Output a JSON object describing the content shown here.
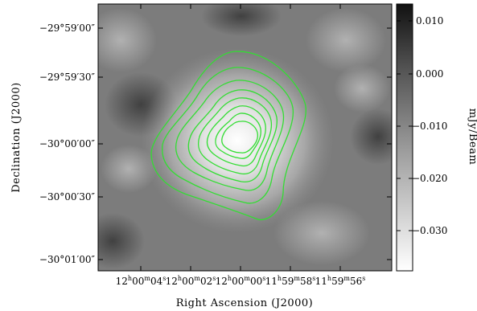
{
  "figure": {
    "xlabel": "Right Ascension (J2000)",
    "ylabel": "Declination (J2000)",
    "colorbar_label": "mJy/Beam",
    "contour_color": "#33dd33",
    "colormap": "grayscale"
  },
  "dec_ticks": [
    {
      "label": "−29°59′00″",
      "dec_arcsec": -60
    },
    {
      "label": "−29°59′30″",
      "dec_arcsec": -30
    },
    {
      "label": "−30°00′00″",
      "dec_arcsec": 0
    },
    {
      "label": "−30°00′30″",
      "dec_arcsec": 30
    },
    {
      "label": "−30°01′00″",
      "dec_arcsec": 60
    }
  ],
  "ra_ticks": [
    {
      "h": "12",
      "m": "00",
      "s": "04",
      "ra_sec": 4
    },
    {
      "h": "12",
      "m": "00",
      "s": "02",
      "ra_sec": 2
    },
    {
      "h": "12",
      "m": "00",
      "s": "00",
      "ra_sec": 0
    },
    {
      "h": "11",
      "m": "59",
      "s": "58",
      "ra_sec": -2
    },
    {
      "h": "11",
      "m": "59",
      "s": "56",
      "ra_sec": -4
    }
  ],
  "colorbar": {
    "ticks": [
      {
        "label": "0.010",
        "value": 0.01
      },
      {
        "label": "0.000",
        "value": 0.0
      },
      {
        "label": "−0.010",
        "value": -0.01
      },
      {
        "label": "−0.020",
        "value": -0.02
      },
      {
        "label": "−0.030",
        "value": -0.03
      }
    ],
    "vmin": -0.037,
    "vmax": 0.013
  }
}
